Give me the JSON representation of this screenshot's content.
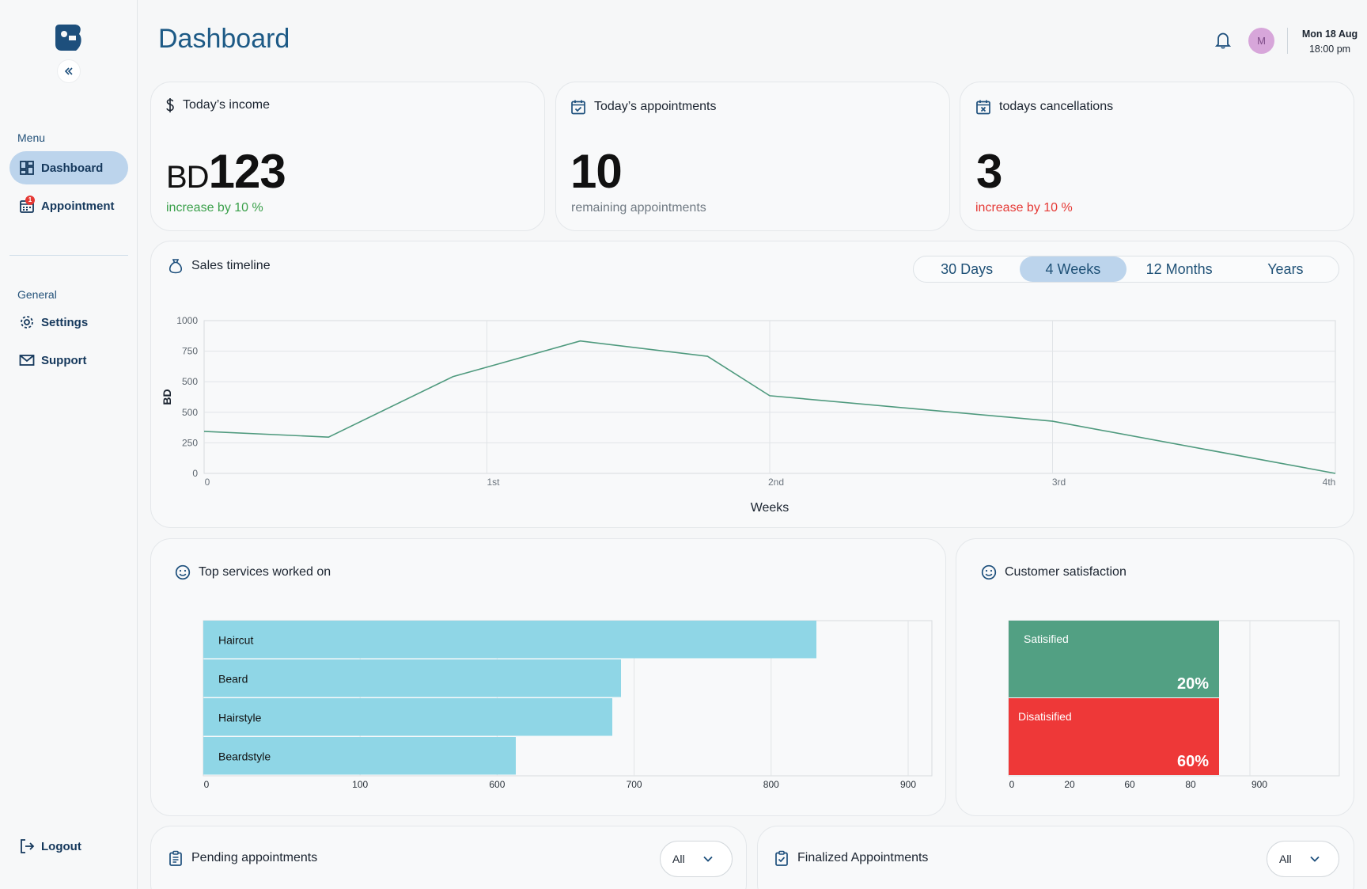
{
  "sidebar": {
    "menu_heading": "Menu",
    "general_heading": "General",
    "items": [
      {
        "label": "Dashboard"
      },
      {
        "label": "Appointment",
        "badge": "1"
      },
      {
        "label": "Settings"
      },
      {
        "label": "Support"
      },
      {
        "label": "Logout"
      }
    ]
  },
  "header": {
    "title": "Dashboard",
    "avatar_initial": "M",
    "date_line1": "Mon 18 Aug",
    "date_line2": "18:00 pm"
  },
  "stats": {
    "income": {
      "title": "Today’s income",
      "prefix": "BD",
      "value": "123",
      "sub": "increase by 10 %"
    },
    "appointments": {
      "title": "Today’s appointments",
      "value": "10",
      "sub": "remaining appointments"
    },
    "cancellations": {
      "title": "todays cancellations",
      "value": "3",
      "sub": "increase by 10 %"
    }
  },
  "colors": {
    "accent": "#1d5a86",
    "active_nav": "#bcd4ec",
    "line": "#4f9a7e",
    "bar": "#8fd6e6",
    "satisfied": "#52a083",
    "dissatisfied": "#ee3838"
  },
  "sales": {
    "title": "Sales timeline",
    "ranges": [
      "30 Days",
      "4 Weeks",
      "12 Months",
      "Years"
    ],
    "active_range": "4 Weeks"
  },
  "services": {
    "title": "Top services worked on"
  },
  "satisfaction": {
    "title": "Customer satisfaction"
  },
  "pending": {
    "title": "Pending appointments",
    "filter": "All"
  },
  "finalized": {
    "title": "Finalized Appointments",
    "filter": "All"
  },
  "chart_data": [
    {
      "type": "line",
      "title": "Sales timeline",
      "xlabel": "Weeks",
      "ylabel": "BD",
      "y_tick_labels": [
        "0",
        "250",
        "500",
        "500",
        "750",
        "1000"
      ],
      "x_tick_labels": [
        "0",
        "1st",
        "2nd",
        "3rd",
        "4th"
      ],
      "grid": true,
      "x": [
        0,
        0.44,
        0.88,
        1.33,
        1.78,
        2,
        3,
        4
      ],
      "y": [
        330,
        285,
        760,
        1040,
        920,
        610,
        410,
        0
      ]
    },
    {
      "type": "bar",
      "orientation": "horizontal",
      "title": "Top services worked on",
      "categories": [
        "Haircut",
        "Beard",
        "Hairstyle",
        "Beardstyle"
      ],
      "values": [
        900,
        740,
        730,
        650
      ],
      "x_tick_labels": [
        "0",
        "100",
        "600",
        "700",
        "800",
        "900"
      ],
      "grid": true
    },
    {
      "type": "bar",
      "orientation": "horizontal",
      "title": "Customer satisfaction",
      "categories": [
        "Satisified",
        "Disatisified"
      ],
      "values": [
        20,
        60
      ],
      "value_labels": [
        "20%",
        "60%"
      ],
      "x_tick_labels": [
        "0",
        "20",
        "60",
        "80",
        "900"
      ],
      "grid": true
    }
  ]
}
